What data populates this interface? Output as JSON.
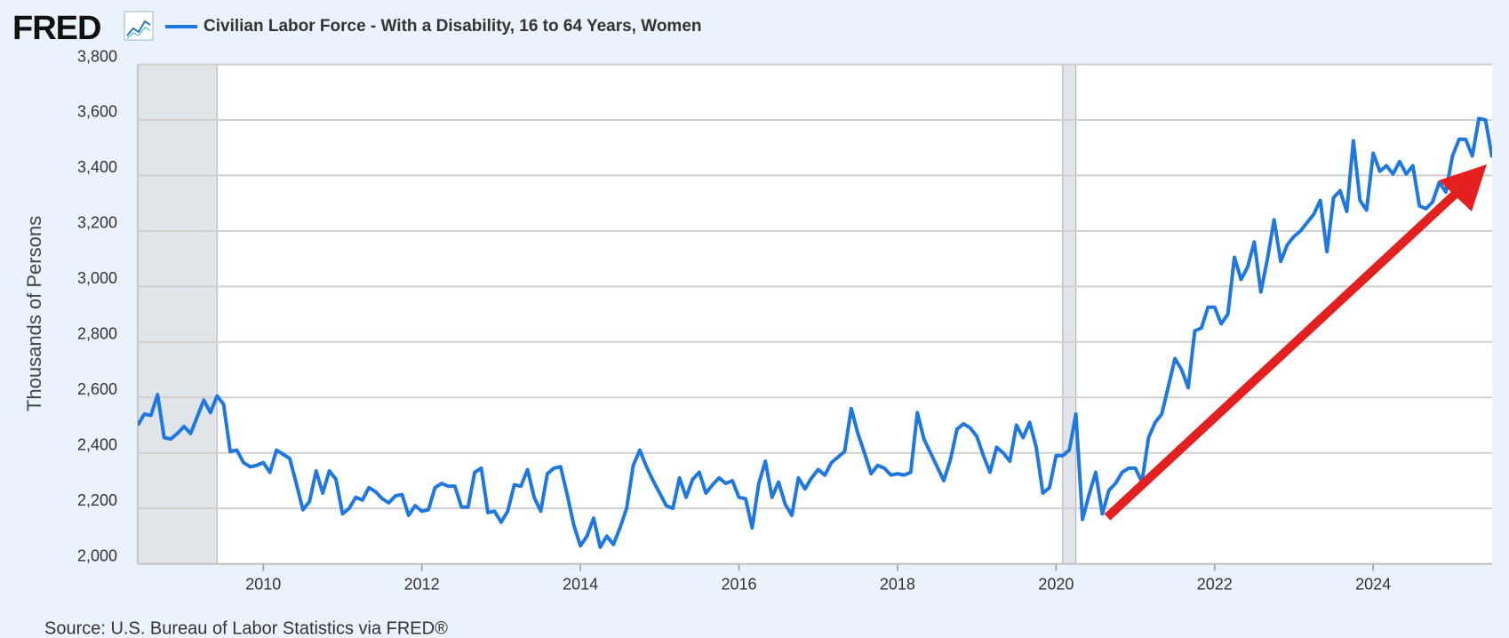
{
  "logo": "FRED",
  "source": "Source: U.S. Bureau of Labor Statistics via FRED®",
  "chart_data": {
    "type": "line",
    "ylabel": "Thousands of Persons",
    "grid": true,
    "recessions": [
      [
        "2007-12",
        "2009-06"
      ],
      [
        "2020-02",
        "2020-04"
      ]
    ],
    "xlim": [
      "2008-06",
      "2025-07"
    ],
    "xticks": [
      2010,
      2012,
      2014,
      2016,
      2018,
      2020,
      2022,
      2024
    ],
    "ylim": [
      2000,
      3800
    ],
    "yticks": [
      {
        "value": 2000,
        "label": "2,000"
      },
      {
        "value": 2200,
        "label": "2,200"
      },
      {
        "value": 2400,
        "label": "2,400"
      },
      {
        "value": 2600,
        "label": "2,600"
      },
      {
        "value": 2800,
        "label": "2,800"
      },
      {
        "value": 3000,
        "label": "3,000"
      },
      {
        "value": 3200,
        "label": "3,200"
      },
      {
        "value": 3400,
        "label": "3,400"
      },
      {
        "value": 3600,
        "label": "3,600"
      },
      {
        "value": 3800,
        "label": "3,800"
      }
    ],
    "x": [
      "2008-06",
      "2008-07",
      "2008-08",
      "2008-09",
      "2008-10",
      "2008-11",
      "2008-12",
      "2009-01",
      "2009-02",
      "2009-03",
      "2009-04",
      "2009-05",
      "2009-06",
      "2009-07",
      "2009-08",
      "2009-09",
      "2009-10",
      "2009-11",
      "2009-12",
      "2010-01",
      "2010-02",
      "2010-03",
      "2010-04",
      "2010-05",
      "2010-06",
      "2010-07",
      "2010-08",
      "2010-09",
      "2010-10",
      "2010-11",
      "2010-12",
      "2011-01",
      "2011-02",
      "2011-03",
      "2011-04",
      "2011-05",
      "2011-06",
      "2011-07",
      "2011-08",
      "2011-09",
      "2011-10",
      "2011-11",
      "2011-12",
      "2012-01",
      "2012-02",
      "2012-03",
      "2012-04",
      "2012-05",
      "2012-06",
      "2012-07",
      "2012-08",
      "2012-09",
      "2012-10",
      "2012-11",
      "2012-12",
      "2013-01",
      "2013-02",
      "2013-03",
      "2013-04",
      "2013-05",
      "2013-06",
      "2013-07",
      "2013-08",
      "2013-09",
      "2013-10",
      "2013-11",
      "2013-12",
      "2014-01",
      "2014-02",
      "2014-03",
      "2014-04",
      "2014-05",
      "2014-06",
      "2014-07",
      "2014-08",
      "2014-09",
      "2014-10",
      "2014-11",
      "2014-12",
      "2015-01",
      "2015-02",
      "2015-03",
      "2015-04",
      "2015-05",
      "2015-06",
      "2015-07",
      "2015-08",
      "2015-09",
      "2015-10",
      "2015-11",
      "2015-12",
      "2016-01",
      "2016-02",
      "2016-03",
      "2016-04",
      "2016-05",
      "2016-06",
      "2016-07",
      "2016-08",
      "2016-09",
      "2016-10",
      "2016-11",
      "2016-12",
      "2017-01",
      "2017-02",
      "2017-03",
      "2017-04",
      "2017-05",
      "2017-06",
      "2017-07",
      "2017-08",
      "2017-09",
      "2017-10",
      "2017-11",
      "2017-12",
      "2018-01",
      "2018-02",
      "2018-03",
      "2018-04",
      "2018-05",
      "2018-06",
      "2018-07",
      "2018-08",
      "2018-09",
      "2018-10",
      "2018-11",
      "2018-12",
      "2019-01",
      "2019-02",
      "2019-03",
      "2019-04",
      "2019-05",
      "2019-06",
      "2019-07",
      "2019-08",
      "2019-09",
      "2019-10",
      "2019-11",
      "2019-12",
      "2020-01",
      "2020-02",
      "2020-03",
      "2020-04",
      "2020-05",
      "2020-06",
      "2020-07",
      "2020-08",
      "2020-09",
      "2020-10",
      "2020-11",
      "2020-12",
      "2021-01",
      "2021-02",
      "2021-03",
      "2021-04",
      "2021-05",
      "2021-06",
      "2021-07",
      "2021-08",
      "2021-09",
      "2021-10",
      "2021-11",
      "2021-12",
      "2022-01",
      "2022-02",
      "2022-03",
      "2022-04",
      "2022-05",
      "2022-06",
      "2022-07",
      "2022-08",
      "2022-09",
      "2022-10",
      "2022-11",
      "2022-12",
      "2023-01",
      "2023-02",
      "2023-03",
      "2023-04",
      "2023-05",
      "2023-06",
      "2023-07",
      "2023-08",
      "2023-09",
      "2023-10",
      "2023-11",
      "2023-12",
      "2024-01",
      "2024-02",
      "2024-03",
      "2024-04",
      "2024-05",
      "2024-06",
      "2024-07",
      "2024-08",
      "2024-09",
      "2024-10",
      "2024-11",
      "2024-12",
      "2025-01",
      "2025-02",
      "2025-03",
      "2025-04",
      "2025-05",
      "2025-06",
      "2025-07"
    ],
    "series": [
      {
        "name": "Civilian Labor Force - With a Disability, 16 to 64 Years, Women",
        "color": "#1f77e0",
        "values": [
          2500,
          2540,
          2535,
          2610,
          2455,
          2450,
          2470,
          2495,
          2470,
          2530,
          2590,
          2545,
          2605,
          2575,
          2405,
          2410,
          2365,
          2350,
          2355,
          2365,
          2330,
          2410,
          2395,
          2380,
          2290,
          2195,
          2225,
          2335,
          2255,
          2335,
          2305,
          2180,
          2200,
          2240,
          2230,
          2275,
          2260,
          2235,
          2220,
          2245,
          2250,
          2175,
          2210,
          2190,
          2195,
          2275,
          2290,
          2280,
          2280,
          2205,
          2205,
          2330,
          2345,
          2185,
          2190,
          2150,
          2190,
          2285,
          2280,
          2340,
          2240,
          2190,
          2325,
          2345,
          2350,
          2250,
          2140,
          2065,
          2100,
          2165,
          2060,
          2100,
          2070,
          2130,
          2200,
          2355,
          2410,
          2350,
          2300,
          2255,
          2210,
          2200,
          2310,
          2240,
          2305,
          2330,
          2255,
          2285,
          2310,
          2290,
          2300,
          2240,
          2235,
          2130,
          2290,
          2370,
          2240,
          2295,
          2215,
          2175,
          2310,
          2270,
          2310,
          2340,
          2320,
          2365,
          2385,
          2405,
          2560,
          2470,
          2400,
          2325,
          2355,
          2345,
          2320,
          2325,
          2320,
          2330,
          2545,
          2450,
          2400,
          2350,
          2300,
          2375,
          2485,
          2505,
          2490,
          2460,
          2390,
          2330,
          2420,
          2400,
          2370,
          2500,
          2455,
          2510,
          2420,
          2255,
          2275,
          2390,
          2390,
          2410,
          2540,
          2160,
          2250,
          2330,
          2180,
          2265,
          2290,
          2330,
          2345,
          2345,
          2295,
          2455,
          2510,
          2540,
          2640,
          2740,
          2700,
          2635,
          2840,
          2850,
          2925,
          2925,
          2865,
          2900,
          3105,
          3025,
          3070,
          3160,
          2980,
          3100,
          3240,
          3090,
          3150,
          3180,
          3200,
          3230,
          3260,
          3310,
          3125,
          3320,
          3345,
          3270,
          3525,
          3310,
          3275,
          3480,
          3415,
          3435,
          3405,
          3450,
          3405,
          3435,
          3290,
          3280,
          3305,
          3375,
          3340,
          3470,
          3530,
          3530,
          3470,
          3605,
          3600,
          3465
        ]
      }
    ]
  }
}
